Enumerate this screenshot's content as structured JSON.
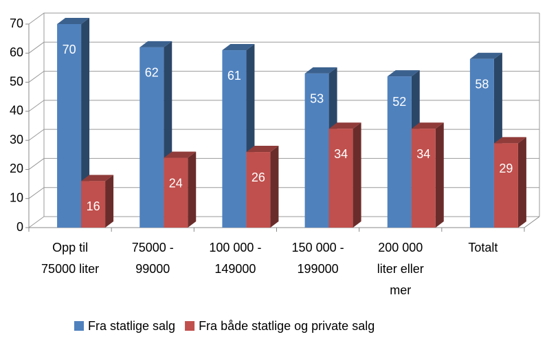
{
  "chart_data": {
    "type": "bar3d",
    "categories": [
      [
        "Opp til",
        "75000 liter"
      ],
      [
        "75000 -",
        "99000"
      ],
      [
        "100 000 -",
        "149000"
      ],
      [
        "150 000 -",
        "199000"
      ],
      [
        "200 000",
        "liter eller",
        "mer"
      ],
      [
        "Totalt"
      ]
    ],
    "series": [
      {
        "name": "Fra statlige salg",
        "color": "#4f81bd",
        "values": [
          70,
          62,
          61,
          53,
          52,
          58
        ]
      },
      {
        "name": "Fra både statlige og private salg",
        "color": "#c0504d",
        "values": [
          16,
          24,
          26,
          34,
          34,
          29
        ]
      }
    ],
    "ylim": [
      0,
      70
    ],
    "yticks": [
      0,
      10,
      20,
      30,
      40,
      50,
      60,
      70
    ],
    "grid": true,
    "legend": "bottom"
  }
}
